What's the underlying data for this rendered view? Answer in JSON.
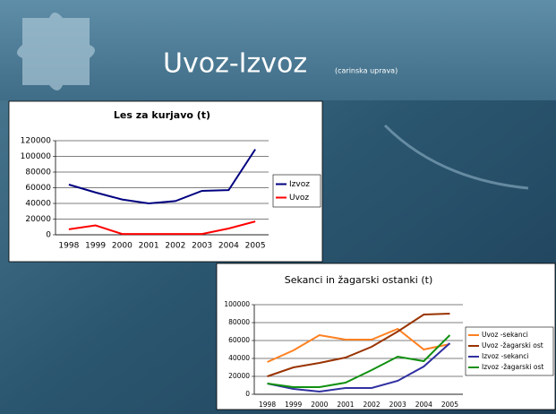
{
  "slide": {
    "title": "Uvoz-Izvoz",
    "subtitle": "(carinska uprava)"
  },
  "chart_data": [
    {
      "type": "line",
      "title": "Les za kurjavo (t)",
      "categories": [
        "1998",
        "1999",
        "2000",
        "2001",
        "2002",
        "2003",
        "2004",
        "2005"
      ],
      "series": [
        {
          "name": "Izvoz",
          "color": "#000080",
          "values": [
            64000,
            54000,
            45000,
            40000,
            43000,
            56000,
            57000,
            109000
          ]
        },
        {
          "name": "Uvoz",
          "color": "#ff0000",
          "values": [
            7000,
            12000,
            1000,
            1000,
            1000,
            1000,
            8000,
            17000
          ]
        }
      ],
      "ylim": [
        0,
        120000
      ],
      "yticks": [
        0,
        20000,
        40000,
        60000,
        80000,
        100000,
        120000
      ],
      "grid": true,
      "legend": "right"
    },
    {
      "type": "line",
      "title": "Sekanci in žagarski ostanki (t)",
      "categories": [
        "1998",
        "1999",
        "2000",
        "2001",
        "2002",
        "2003",
        "2004",
        "2005"
      ],
      "series": [
        {
          "name": "Uvoz -sekanci",
          "color": "#ff8020",
          "values": [
            36000,
            49000,
            66000,
            61000,
            61000,
            73000,
            50000,
            56000
          ]
        },
        {
          "name": "Uvoz -žagarski ost",
          "color": "#993300",
          "values": [
            20000,
            30000,
            35000,
            41000,
            53000,
            70000,
            89000,
            90000
          ]
        },
        {
          "name": "Izvoz -sekanci",
          "color": "#3030a0",
          "values": [
            12000,
            6000,
            3000,
            7000,
            7000,
            15000,
            31000,
            57000
          ]
        },
        {
          "name": "Izvoz -žagarski ost",
          "color": "#109010",
          "values": [
            12000,
            8000,
            8000,
            13000,
            27000,
            42000,
            37000,
            66000
          ]
        }
      ],
      "ylim": [
        0,
        100000
      ],
      "yticks": [
        0,
        20000,
        40000,
        60000,
        80000,
        100000
      ],
      "grid": true,
      "legend": "right"
    }
  ]
}
